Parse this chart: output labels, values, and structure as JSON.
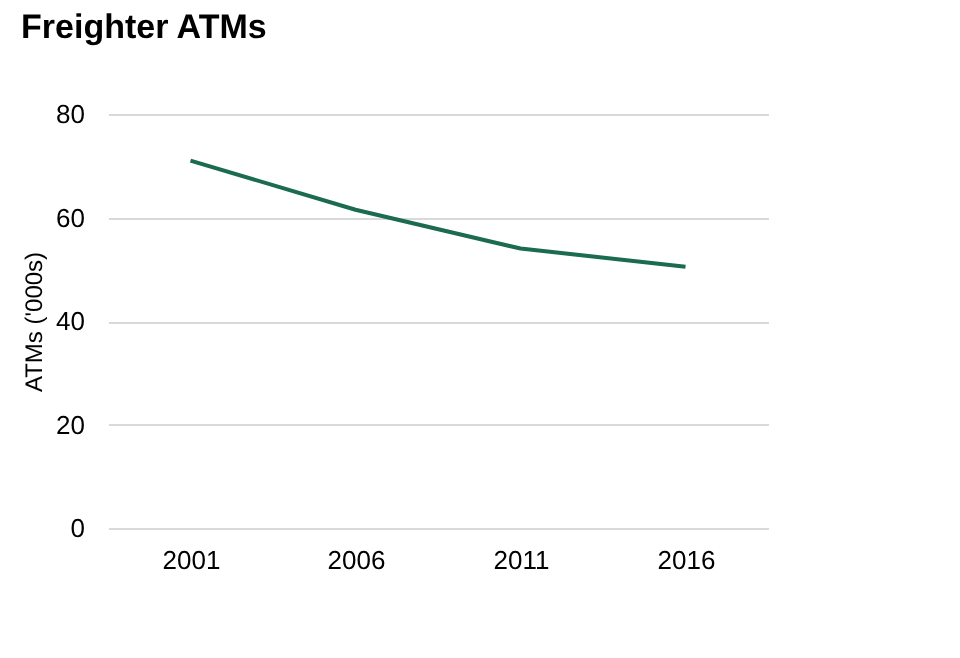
{
  "chart_data": {
    "type": "line",
    "title": "Freighter ATMs",
    "ylabel": "ATMs ('000s)",
    "categories": [
      "2001",
      "2006",
      "2011",
      "2016"
    ],
    "series": [
      {
        "color": "#1b6b50",
        "values": [
          71,
          61.5,
          54,
          50.5
        ]
      }
    ],
    "ylim": [
      0,
      80
    ],
    "yticks": [
      0,
      20,
      40,
      60,
      80
    ],
    "grid": "y",
    "marker": "none",
    "line_style": "solid"
  }
}
